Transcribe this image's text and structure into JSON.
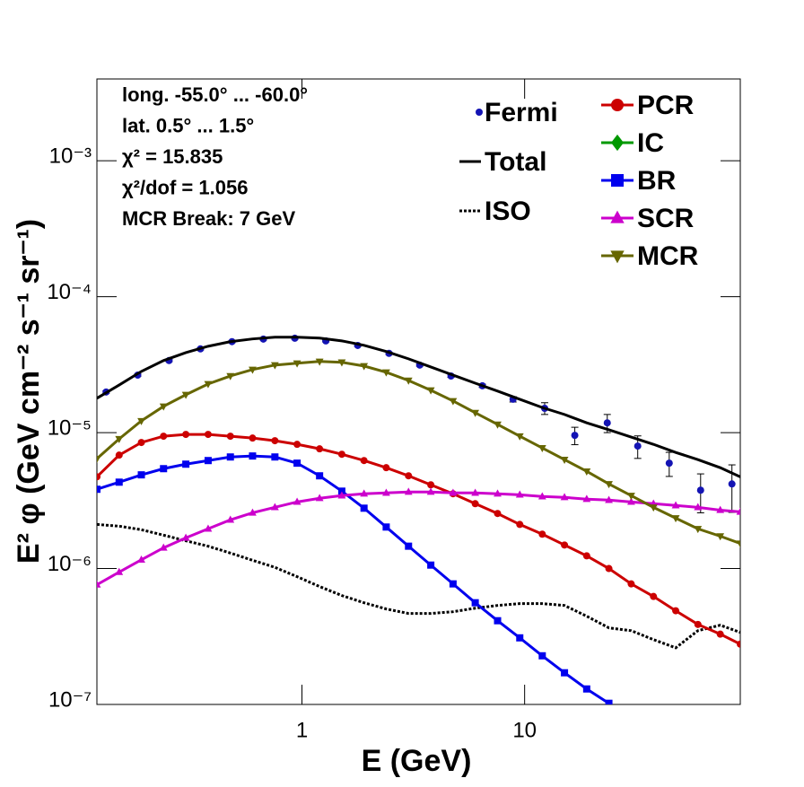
{
  "chart_data": {
    "type": "line",
    "x_label": "E (GeV)",
    "y_label": "E² φ (GeV cm⁻² s⁻¹ sr⁻¹)",
    "annotations": [
      "long. -55.0° ... -60.0°",
      "lat. 0.5° ... 1.5°",
      "χ² = 15.835",
      "χ²/dof = 1.056",
      "MCR Break:  7 GeV"
    ],
    "log_x": true,
    "log_y": true,
    "xlim": [
      0.12,
      93
    ],
    "ylim": [
      1e-07,
      0.004
    ],
    "xticks": [
      1,
      10
    ],
    "yticks": [
      {
        "value": 1e-07,
        "label": "10⁻⁷"
      },
      {
        "value": 1e-06,
        "label": "10⁻⁶"
      },
      {
        "value": 1e-05,
        "label": "10⁻⁵"
      },
      {
        "value": 0.0001,
        "label": "10⁻⁴"
      },
      {
        "value": 0.001,
        "label": "10⁻³"
      }
    ],
    "x": [
      0.12,
      0.151,
      0.19,
      0.239,
      0.301,
      0.379,
      0.477,
      0.6,
      0.756,
      0.951,
      1.2,
      1.51,
      1.9,
      2.39,
      3.01,
      3.79,
      4.77,
      6,
      7.56,
      9.51,
      12,
      15.1,
      19,
      23.9,
      30.1,
      37.9,
      47.7,
      60,
      75.6,
      93
    ],
    "series": [
      {
        "name": "Fermi",
        "color": "#1414b4",
        "line": "none",
        "marker": "circle",
        "x": [
          0.132,
          0.183,
          0.253,
          0.35,
          0.485,
          0.671,
          0.929,
          1.28,
          1.78,
          2.46,
          3.38,
          4.67,
          6.46,
          8.87,
          12.3,
          16.8,
          23.5,
          32.2,
          44.6,
          61.7,
          85.3
        ],
        "values": [
          1.99e-05,
          2.65e-05,
          3.39e-05,
          4.13e-05,
          4.67e-05,
          4.88e-05,
          4.95e-05,
          4.73e-05,
          4.38e-05,
          3.83e-05,
          3.14e-05,
          2.61e-05,
          2.21e-05,
          1.76e-05,
          1.51e-05,
          9.55e-06,
          1.18e-05,
          7.96e-06,
          5.96e-06,
          3.77e-06,
          4.19e-06
        ],
        "errors": [
          4e-07,
          5e-07,
          6e-07,
          7e-07,
          8e-07,
          8e-07,
          8e-07,
          8e-07,
          7e-07,
          7e-07,
          6e-07,
          6e-07,
          6e-07,
          8e-07,
          1.5e-06,
          1.4e-06,
          1.8e-06,
          1.5e-06,
          1.2e-06,
          1.2e-06,
          1.6e-06
        ]
      },
      {
        "name": "Total",
        "color": "#000000",
        "line": "solid",
        "marker": "none",
        "values": [
          1.79e-05,
          2.24e-05,
          2.82e-05,
          3.39e-05,
          3.88e-05,
          4.32e-05,
          4.67e-05,
          4.89e-05,
          5.04e-05,
          5.04e-05,
          4.96e-05,
          4.73e-05,
          4.39e-05,
          3.95e-05,
          3.49e-05,
          3.04e-05,
          2.65e-05,
          2.31e-05,
          2.02e-05,
          1.76e-05,
          1.53e-05,
          1.36e-05,
          1.18e-05,
          1.05e-05,
          9.27e-06,
          8.2e-06,
          7.15e-06,
          6.33e-06,
          5.52e-06,
          4.73e-06
        ]
      },
      {
        "name": "ISO",
        "color": "#000000",
        "line": "dotted",
        "marker": "none",
        "values": [
          2.11e-06,
          2.05e-06,
          1.93e-06,
          1.76e-06,
          1.6e-06,
          1.46e-06,
          1.3e-06,
          1.15e-06,
          1.02e-06,
          8.71e-07,
          7.37e-07,
          6.33e-07,
          5.6e-07,
          5.04e-07,
          4.67e-07,
          4.67e-07,
          4.81e-07,
          5.11e-07,
          5.35e-07,
          5.52e-07,
          5.52e-07,
          5.35e-07,
          4.46e-07,
          3.66e-07,
          3.49e-07,
          3e-07,
          2.61e-07,
          3.49e-07,
          3.83e-07,
          3.39e-07
        ]
      },
      {
        "name": "PCR",
        "color": "#cc0000",
        "line": "solid",
        "marker": "circle",
        "values": [
          4.73e-06,
          6.83e-06,
          8.46e-06,
          9.41e-06,
          9.7e-06,
          9.7e-06,
          9.41e-06,
          9.12e-06,
          8.72e-06,
          8.2e-06,
          7.6e-06,
          6.93e-06,
          6.23e-06,
          5.52e-06,
          4.81e-06,
          4.13e-06,
          3.55e-06,
          3e-06,
          2.54e-06,
          2.11e-06,
          1.79e-06,
          1.49e-06,
          1.24e-06,
          1e-06,
          7.71e-07,
          6.23e-07,
          4.89e-07,
          3.88e-07,
          3.29e-07,
          2.78e-07
        ]
      },
      {
        "name": "IC",
        "color": "#009900",
        "line": "solid",
        "marker": "diamond",
        "values": [
          null,
          null,
          null,
          null,
          null,
          null,
          null,
          null,
          null,
          null,
          null,
          null,
          null,
          null,
          null,
          null,
          null,
          null,
          null,
          null,
          null,
          null,
          null,
          null,
          null,
          null,
          null,
          null,
          null,
          null
        ]
      },
      {
        "name": "BR",
        "color": "#0000ee",
        "line": "solid",
        "marker": "square",
        "values": [
          3.83e-06,
          4.32e-06,
          4.89e-06,
          5.43e-06,
          5.86e-06,
          6.23e-06,
          6.62e-06,
          6.73e-06,
          6.62e-06,
          5.96e-06,
          4.81e-06,
          3.71e-06,
          2.78e-06,
          2.02e-06,
          1.46e-06,
          1.06e-06,
          7.71e-07,
          5.6e-07,
          4.13e-07,
          3.09e-07,
          2.28e-07,
          1.71e-07,
          1.3e-07,
          1.02e-07,
          null,
          null,
          null,
          null,
          null,
          null
        ]
      },
      {
        "name": "SCR",
        "color": "#cc00cc",
        "line": "solid",
        "marker": "triangle-up",
        "values": [
          7.6e-07,
          9.41e-07,
          1.16e-06,
          1.42e-06,
          1.68e-06,
          1.96e-06,
          2.28e-06,
          2.57e-06,
          2.82e-06,
          3.09e-06,
          3.29e-06,
          3.44e-06,
          3.55e-06,
          3.6e-06,
          3.66e-06,
          3.66e-06,
          3.6e-06,
          3.6e-06,
          3.55e-06,
          3.49e-06,
          3.39e-06,
          3.34e-06,
          3.24e-06,
          3.19e-06,
          3.09e-06,
          3e-06,
          2.91e-06,
          2.82e-06,
          2.69e-06,
          2.61e-06
        ]
      },
      {
        "name": "MCR",
        "color": "#666600",
        "line": "solid",
        "marker": "triangle-down",
        "values": [
          6.43e-06,
          8.99e-06,
          1.22e-05,
          1.56e-05,
          1.9e-05,
          2.28e-05,
          2.61e-05,
          2.91e-05,
          3.14e-05,
          3.24e-05,
          3.34e-05,
          3.29e-05,
          3.09e-05,
          2.78e-05,
          2.42e-05,
          2.05e-05,
          1.71e-05,
          1.4e-05,
          1.15e-05,
          9.41e-06,
          7.71e-06,
          6.33e-06,
          5.19e-06,
          4.19e-06,
          3.44e-06,
          2.82e-06,
          2.35e-06,
          1.96e-06,
          1.73e-06,
          1.53e-06
        ]
      }
    ]
  }
}
